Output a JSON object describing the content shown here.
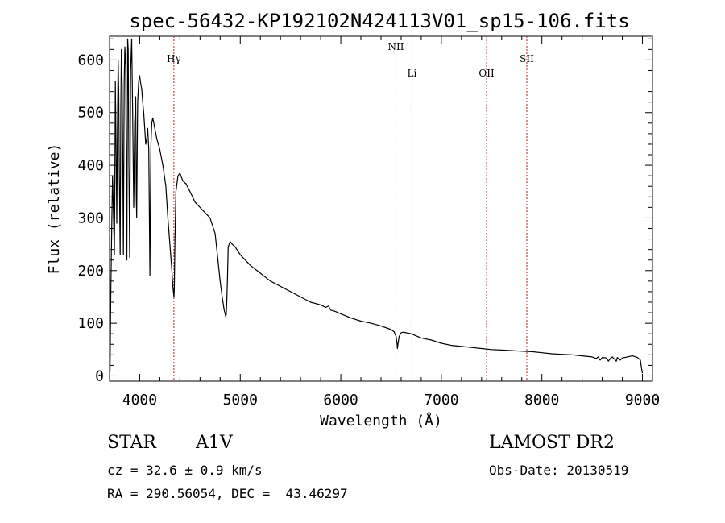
{
  "chart_data": {
    "type": "line",
    "title": "spec-56432-KP192102N424113V01_sp15-106.fits",
    "xlabel": "Wavelength (Å)",
    "ylabel": "Flux (relative)",
    "xlim": [
      3700,
      9100
    ],
    "ylim": [
      -10,
      645
    ],
    "x_ticks": [
      4000,
      5000,
      6000,
      7000,
      8000,
      9000
    ],
    "y_ticks": [
      0,
      100,
      200,
      300,
      400,
      500,
      600
    ],
    "grid": false,
    "line_color": "#000000",
    "marker_color": "#b22222",
    "series": [
      {
        "x": [
          3700,
          3705,
          3712,
          3720,
          3730,
          3740,
          3748,
          3752,
          3758,
          3766,
          3772,
          3778,
          3786,
          3792,
          3798,
          3806,
          3812,
          3818,
          3826,
          3832,
          3838,
          3846,
          3852,
          3860,
          3866,
          3872,
          3880,
          3886,
          3892,
          3900,
          3910,
          3920,
          3930,
          3940,
          3950,
          3960,
          3966,
          3970,
          3975,
          3980,
          3990,
          4000,
          4010,
          4020,
          4030,
          4040,
          4050,
          4060,
          4070,
          4080,
          4090,
          4095,
          4101,
          4106,
          4112,
          4120,
          4130,
          4150,
          4170,
          4200,
          4230,
          4260,
          4280,
          4300,
          4320,
          4330,
          4338,
          4341,
          4344,
          4350,
          4360,
          4380,
          4400,
          4430,
          4460,
          4500,
          4550,
          4600,
          4650,
          4700,
          4750,
          4800,
          4820,
          4840,
          4850,
          4856,
          4861,
          4866,
          4872,
          4880,
          4900,
          4920,
          4950,
          5000,
          5100,
          5200,
          5300,
          5400,
          5500,
          5600,
          5700,
          5800,
          5850,
          5880,
          5890,
          5900,
          5950,
          6000,
          6100,
          6200,
          6300,
          6400,
          6500,
          6530,
          6550,
          6560,
          6563,
          6568,
          6580,
          6600,
          6620,
          6700,
          6800,
          6900,
          7000,
          7100,
          7200,
          7300,
          7400,
          7500,
          7600,
          7700,
          7800,
          7900,
          8000,
          8100,
          8200,
          8300,
          8400,
          8500,
          8540,
          8560,
          8580,
          8600,
          8640,
          8662,
          8680,
          8700,
          8740,
          8750,
          8780,
          8800,
          8850,
          8900,
          8950,
          8980,
          8990,
          9000
        ],
        "values": [
          40,
          10,
          150,
          260,
          380,
          300,
          230,
          330,
          560,
          420,
          290,
          450,
          600,
          530,
          380,
          230,
          510,
          620,
          550,
          400,
          230,
          560,
          625,
          590,
          430,
          220,
          640,
          620,
          410,
          225,
          580,
          640,
          500,
          320,
          480,
          530,
          340,
          300,
          420,
          520,
          560,
          570,
          555,
          545,
          520,
          500,
          470,
          440,
          450,
          470,
          430,
          330,
          190,
          320,
          440,
          480,
          490,
          470,
          450,
          430,
          400,
          360,
          300,
          250,
          200,
          170,
          155,
          150,
          165,
          250,
          350,
          380,
          385,
          370,
          365,
          350,
          330,
          320,
          310,
          300,
          270,
          180,
          150,
          125,
          118,
          112,
          118,
          140,
          180,
          245,
          255,
          250,
          245,
          230,
          210,
          195,
          180,
          170,
          160,
          150,
          140,
          135,
          130,
          133,
          128,
          125,
          122,
          118,
          110,
          104,
          100,
          95,
          88,
          84,
          75,
          60,
          52,
          60,
          75,
          82,
          83,
          80,
          72,
          68,
          62,
          58,
          56,
          54,
          52,
          50,
          49,
          48,
          47,
          46,
          44,
          42,
          41,
          40,
          38,
          36,
          33,
          36,
          30,
          35,
          34,
          28,
          33,
          36,
          28,
          35,
          30,
          34,
          36,
          38,
          35,
          30,
          15,
          5
        ]
      }
    ],
    "line_markers": [
      {
        "label": "Hγ",
        "x": 4340
      },
      {
        "label": "NII",
        "x": 6548
      },
      {
        "label": "Li",
        "x": 6708
      },
      {
        "label": "OII",
        "x": 7450
      },
      {
        "label": "SII",
        "x": 7850
      }
    ]
  },
  "info": {
    "object_type": "STAR",
    "spectral_class": "A1V",
    "survey": "LAMOST DR2",
    "velocity": "cz = 32.6 ± 0.9 km/s",
    "obs_date": "Obs-Date: 20130519",
    "coords": "RA = 290.56054, DEC =  43.46297"
  }
}
